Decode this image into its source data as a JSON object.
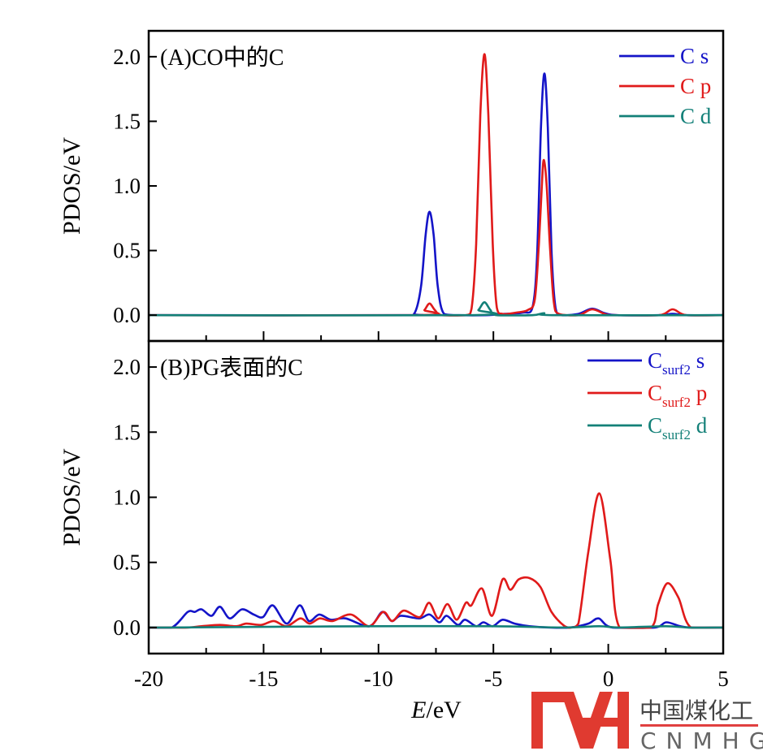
{
  "chart_data": [
    {
      "type": "line",
      "panel_label": "(A)CO中的C",
      "xlabel_italic": "E",
      "xlabel_rest": "/eV",
      "ylabel": "PDOS/eV",
      "xlim": [
        -20,
        5
      ],
      "ylim": [
        -0.2,
        2.2
      ],
      "xticks": [
        "-20",
        "-15",
        "-10",
        "-5",
        "0",
        "5"
      ],
      "xtick_values": [
        -20,
        -15,
        -10,
        -5,
        0,
        5
      ],
      "yticks": [
        "0.0",
        "0.5",
        "1.0",
        "1.5",
        "2.0"
      ],
      "ytick_values": [
        0,
        0.5,
        1.0,
        1.5,
        2.0
      ],
      "legend_position": "top-right",
      "series": [
        {
          "name": "C s",
          "base": "C",
          "sub": "",
          "orb": "s",
          "color": "#1414c8",
          "points": [
            [
              -20,
              0
            ],
            [
              -9,
              0
            ],
            [
              -8.45,
              0.01
            ],
            [
              -8.15,
              0.22
            ],
            [
              -7.95,
              0.62
            ],
            [
              -7.78,
              0.8
            ],
            [
              -7.6,
              0.62
            ],
            [
              -7.42,
              0.22
            ],
            [
              -7.15,
              0.01
            ],
            [
              -6.5,
              0
            ],
            [
              -5.3,
              0
            ],
            [
              -4.5,
              0.01
            ],
            [
              -3.7,
              0.02
            ],
            [
              -3.3,
              0.06
            ],
            [
              -3.1,
              0.45
            ],
            [
              -2.93,
              1.45
            ],
            [
              -2.78,
              1.87
            ],
            [
              -2.63,
              1.45
            ],
            [
              -2.47,
              0.5
            ],
            [
              -2.3,
              0.06
            ],
            [
              -2.05,
              0
            ],
            [
              -1.3,
              0.01
            ],
            [
              -0.7,
              0.05
            ],
            [
              -0.15,
              0.015
            ],
            [
              0.4,
              0
            ],
            [
              2.2,
              0
            ],
            [
              2.8,
              0.01
            ],
            [
              3.4,
              0
            ],
            [
              5,
              0
            ]
          ]
        },
        {
          "name": "C p",
          "base": "C",
          "sub": "",
          "orb": "p",
          "color": "#e01a1a",
          "points": [
            [
              -20,
              0
            ],
            [
              -8.3,
              0
            ],
            [
              -8.0,
              0.04
            ],
            [
              -7.78,
              0.09
            ],
            [
              -7.55,
              0.04
            ],
            [
              -7.25,
              0
            ],
            [
              -6.2,
              0
            ],
            [
              -5.95,
              0.05
            ],
            [
              -5.75,
              0.55
            ],
            [
              -5.57,
              1.55
            ],
            [
              -5.39,
              2.02
            ],
            [
              -5.22,
              1.55
            ],
            [
              -5.03,
              0.55
            ],
            [
              -4.85,
              0.06
            ],
            [
              -4.6,
              0.01
            ],
            [
              -4.0,
              0.02
            ],
            [
              -3.5,
              0.04
            ],
            [
              -3.2,
              0.12
            ],
            [
              -3.02,
              0.55
            ],
            [
              -2.88,
              1.05
            ],
            [
              -2.8,
              1.2
            ],
            [
              -2.68,
              1.0
            ],
            [
              -2.53,
              0.5
            ],
            [
              -2.37,
              0.1
            ],
            [
              -2.15,
              0.01
            ],
            [
              -1.3,
              0
            ],
            [
              -0.7,
              0.045
            ],
            [
              -0.1,
              0.005
            ],
            [
              0.3,
              0
            ],
            [
              2.2,
              0
            ],
            [
              2.8,
              0.045
            ],
            [
              3.4,
              0
            ],
            [
              5,
              0
            ]
          ]
        },
        {
          "name": "C d",
          "base": "C",
          "sub": "",
          "orb": "d",
          "color": "#138078",
          "points": [
            [
              -20,
              0
            ],
            [
              -5.95,
              0
            ],
            [
              -5.65,
              0.04
            ],
            [
              -5.39,
              0.1
            ],
            [
              -5.13,
              0.04
            ],
            [
              -4.85,
              0
            ],
            [
              -3.3,
              0
            ],
            [
              -2.8,
              0.015
            ],
            [
              -2.3,
              0
            ],
            [
              5,
              0
            ]
          ]
        }
      ]
    },
    {
      "type": "line",
      "panel_label": "(B)PG表面的C",
      "xlabel_italic": "E",
      "xlabel_rest": "/eV",
      "ylabel": "PDOS/eV",
      "xlim": [
        -20,
        5
      ],
      "ylim": [
        -0.2,
        2.2
      ],
      "xticks": [
        "-20",
        "-15",
        "-10",
        "-5",
        "0",
        "5"
      ],
      "xtick_values": [
        -20,
        -15,
        -10,
        -5,
        0,
        5
      ],
      "yticks": [
        "0.0",
        "0.5",
        "1.0",
        "1.5",
        "2.0"
      ],
      "ytick_values": [
        0,
        0.5,
        1.0,
        1.5,
        2.0
      ],
      "legend_position": "top-right",
      "series": [
        {
          "name": "Csurf2 s",
          "base": "C",
          "sub": "surf2",
          "orb": "s",
          "color": "#1414c8",
          "points": [
            [
              -20,
              0
            ],
            [
              -19.0,
              0
            ],
            [
              -18.3,
              0.12
            ],
            [
              -18.0,
              0.12
            ],
            [
              -17.7,
              0.14
            ],
            [
              -17.27,
              0.09
            ],
            [
              -16.9,
              0.16
            ],
            [
              -16.47,
              0.07
            ],
            [
              -15.94,
              0.14
            ],
            [
              -15.43,
              0.1
            ],
            [
              -15.03,
              0.08
            ],
            [
              -14.6,
              0.17
            ],
            [
              -13.99,
              0.03
            ],
            [
              -13.43,
              0.17
            ],
            [
              -13.03,
              0.05
            ],
            [
              -12.58,
              0.1
            ],
            [
              -12.07,
              0.06
            ],
            [
              -11.43,
              0.07
            ],
            [
              -10.4,
              0.01
            ],
            [
              -9.83,
              0.12
            ],
            [
              -9.43,
              0.05
            ],
            [
              -9.03,
              0.09
            ],
            [
              -8.23,
              0.07
            ],
            [
              -7.78,
              0.1
            ],
            [
              -7.35,
              0.04
            ],
            [
              -7.03,
              0.09
            ],
            [
              -6.55,
              0.02
            ],
            [
              -6.23,
              0.06
            ],
            [
              -5.75,
              0.01
            ],
            [
              -5.43,
              0.04
            ],
            [
              -5.03,
              0.01
            ],
            [
              -4.6,
              0.06
            ],
            [
              -4.07,
              0.03
            ],
            [
              -3.43,
              0.01
            ],
            [
              -2.5,
              0
            ],
            [
              -1.67,
              0
            ],
            [
              -0.87,
              0.03
            ],
            [
              -0.42,
              0.07
            ],
            [
              0.17,
              0
            ],
            [
              2.01,
              0
            ],
            [
              2.52,
              0.04
            ],
            [
              3.13,
              0.01
            ],
            [
              3.6,
              0
            ],
            [
              5,
              0
            ]
          ]
        },
        {
          "name": "Csurf2 p",
          "base": "C",
          "sub": "surf2",
          "orb": "p",
          "color": "#e01a1a",
          "points": [
            [
              -20,
              0
            ],
            [
              -19.1,
              0
            ],
            [
              -18.3,
              0
            ],
            [
              -17.7,
              0.01
            ],
            [
              -16.9,
              0.02
            ],
            [
              -16.2,
              0.01
            ],
            [
              -15.75,
              0.03
            ],
            [
              -15.1,
              0.02
            ],
            [
              -14.55,
              0.05
            ],
            [
              -14.0,
              0.01
            ],
            [
              -13.4,
              0.07
            ],
            [
              -13.0,
              0.03
            ],
            [
              -12.55,
              0.07
            ],
            [
              -12.0,
              0.05
            ],
            [
              -11.2,
              0.1
            ],
            [
              -10.4,
              0.01
            ],
            [
              -9.8,
              0.12
            ],
            [
              -9.4,
              0.05
            ],
            [
              -8.9,
              0.13
            ],
            [
              -8.2,
              0.08
            ],
            [
              -7.8,
              0.19
            ],
            [
              -7.4,
              0.07
            ],
            [
              -7.0,
              0.18
            ],
            [
              -6.6,
              0.06
            ],
            [
              -6.2,
              0.19
            ],
            [
              -5.96,
              0.17
            ],
            [
              -5.5,
              0.3
            ],
            [
              -5.06,
              0.09
            ],
            [
              -4.6,
              0.37
            ],
            [
              -4.26,
              0.29
            ],
            [
              -3.9,
              0.37
            ],
            [
              -3.43,
              0.38
            ],
            [
              -2.95,
              0.31
            ],
            [
              -2.47,
              0.12
            ],
            [
              -1.9,
              0.01
            ],
            [
              -1.6,
              0
            ],
            [
              -1.3,
              0.03
            ],
            [
              -0.87,
              0.58
            ],
            [
              -0.39,
              1.03
            ],
            [
              0.09,
              0.52
            ],
            [
              0.49,
              0
            ],
            [
              1.85,
              0
            ],
            [
              2.17,
              0.18
            ],
            [
              2.57,
              0.34
            ],
            [
              3.05,
              0.23
            ],
            [
              3.6,
              0
            ],
            [
              5,
              0
            ]
          ]
        },
        {
          "name": "Csurf2 d",
          "base": "C",
          "sub": "surf2",
          "orb": "d",
          "color": "#138078",
          "points": [
            [
              -20,
              0
            ],
            [
              -19,
              0
            ],
            [
              -15,
              0.005
            ],
            [
              -10,
              0.01
            ],
            [
              -5,
              0.01
            ],
            [
              -2,
              0
            ],
            [
              -0.4,
              0.01
            ],
            [
              0.5,
              0
            ],
            [
              2.5,
              0.01
            ],
            [
              3.5,
              0
            ],
            [
              5,
              0
            ]
          ]
        }
      ]
    }
  ],
  "watermark": {
    "cn": "中国煤化工",
    "en": "CNMHG"
  }
}
